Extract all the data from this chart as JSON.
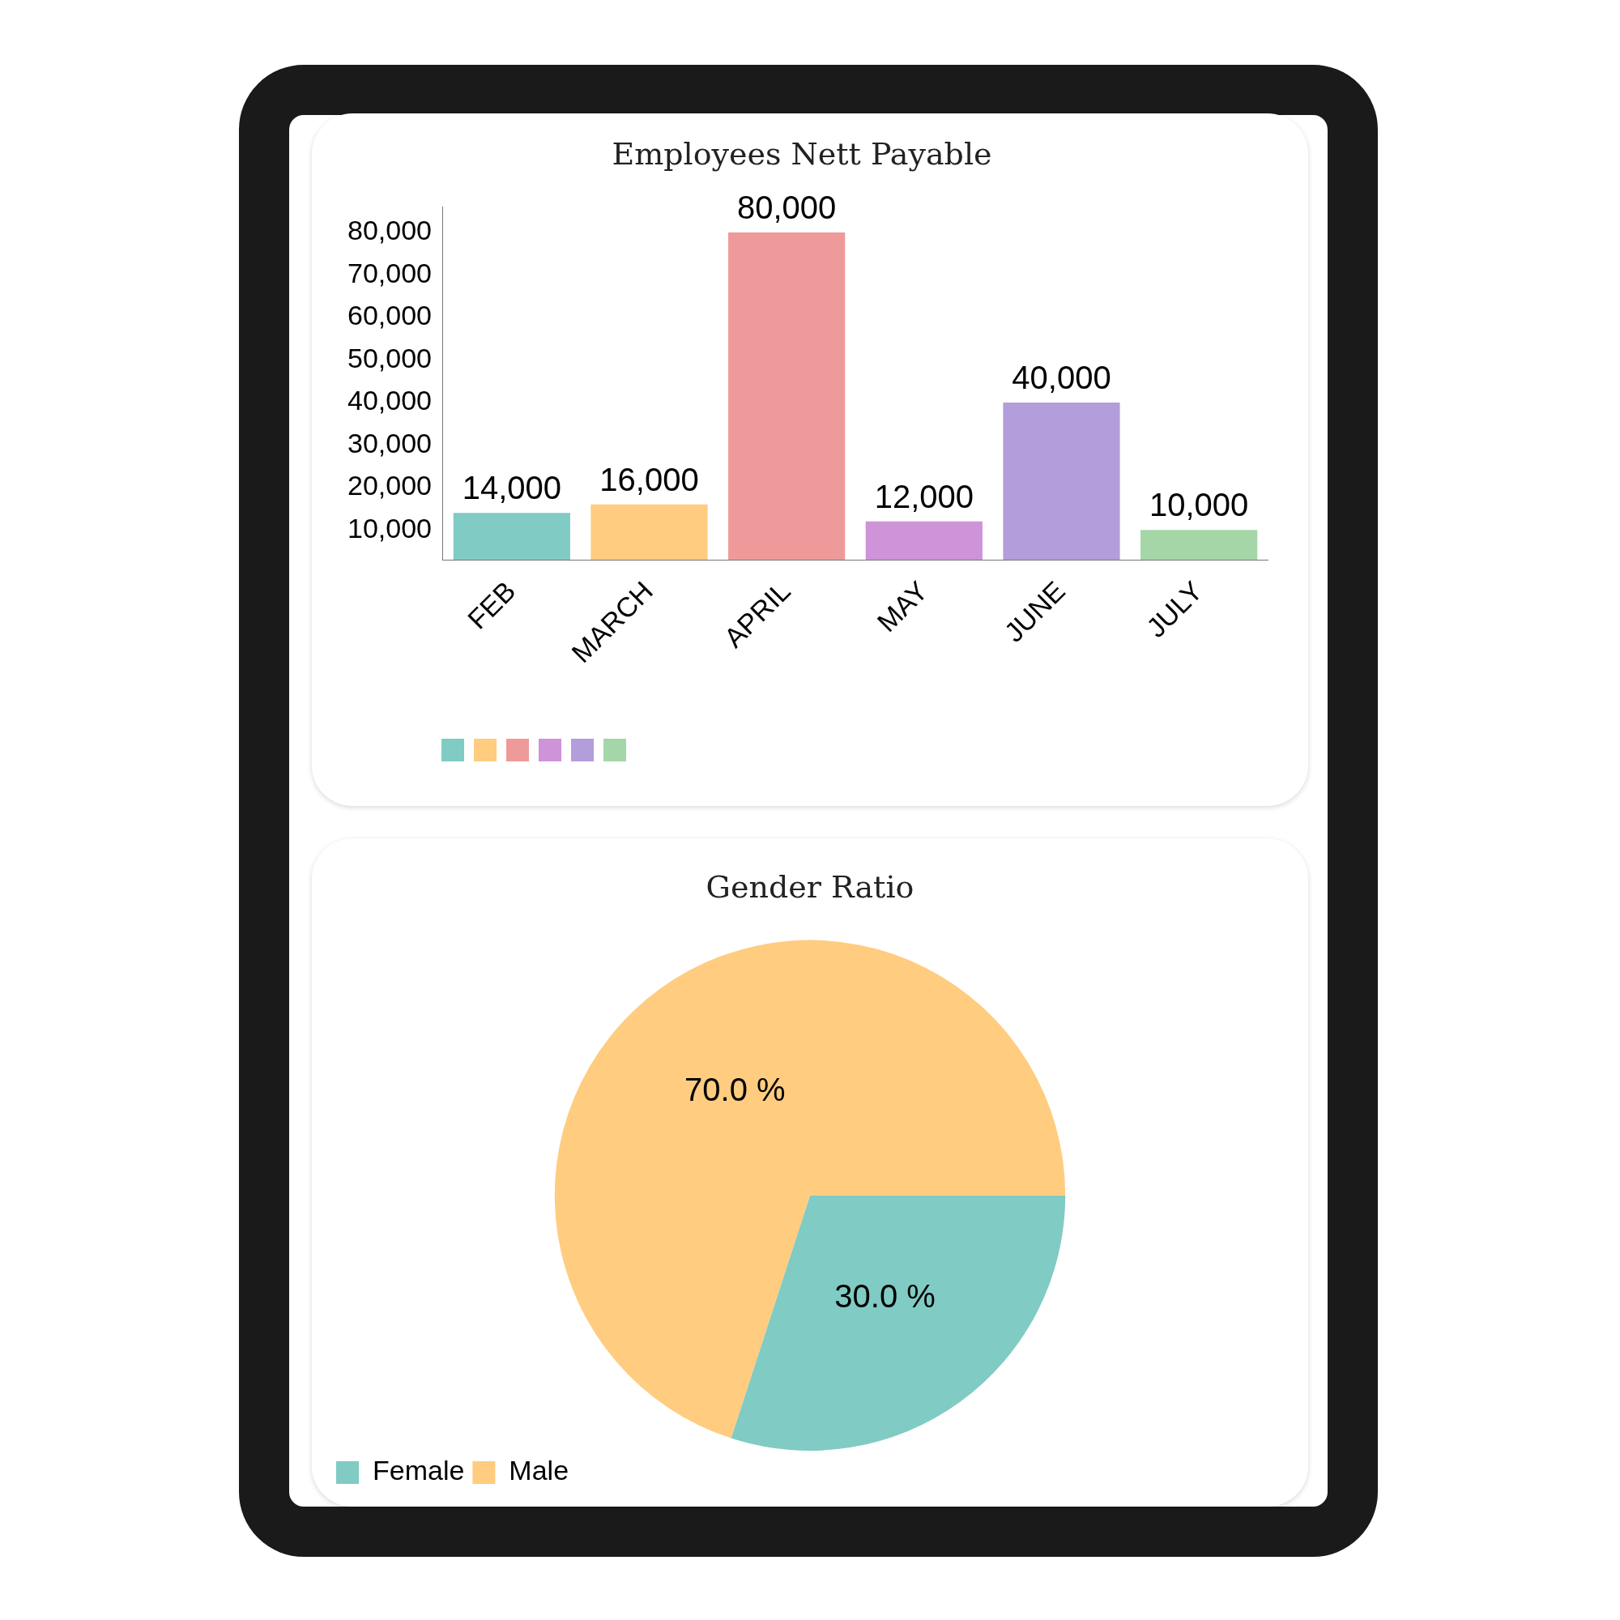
{
  "chart_data": [
    {
      "type": "bar",
      "title": "Employees Nett Payable",
      "categories": [
        "FEB",
        "MARCH",
        "APRIL",
        "MAY",
        "JUNE",
        "JULY"
      ],
      "values": [
        14000,
        16000,
        80000,
        12000,
        40000,
        10000
      ],
      "colors": [
        "#80cbc4",
        "#ffcc80",
        "#ef9a9a",
        "#ce93d8",
        "#b39ddb",
        "#a5d6a7"
      ],
      "ylim": [
        3000,
        86000
      ],
      "yticks": [
        {
          "value": 10000,
          "label": "10,000"
        },
        {
          "value": 20000,
          "label": "20,000"
        },
        {
          "value": 30000,
          "label": "30,000"
        },
        {
          "value": 40000,
          "label": "40,000"
        },
        {
          "value": 50000,
          "label": "50,000"
        },
        {
          "value": 60000,
          "label": "60,000"
        },
        {
          "value": 70000,
          "label": "70,000"
        },
        {
          "value": 80000,
          "label": "80,000"
        }
      ],
      "value_labels": [
        "14,000",
        "16,000",
        "80,000",
        "12,000",
        "40,000",
        "10,000"
      ],
      "grid": false
    },
    {
      "type": "pie",
      "title": "Gender Ratio",
      "categories": [
        "Female",
        "Male"
      ],
      "values": [
        30,
        70
      ],
      "colors": [
        "#80cbc4",
        "#ffcc80"
      ],
      "value_labels": [
        "30.0 %",
        "70.0 %"
      ],
      "legend": "bottom left"
    }
  ]
}
